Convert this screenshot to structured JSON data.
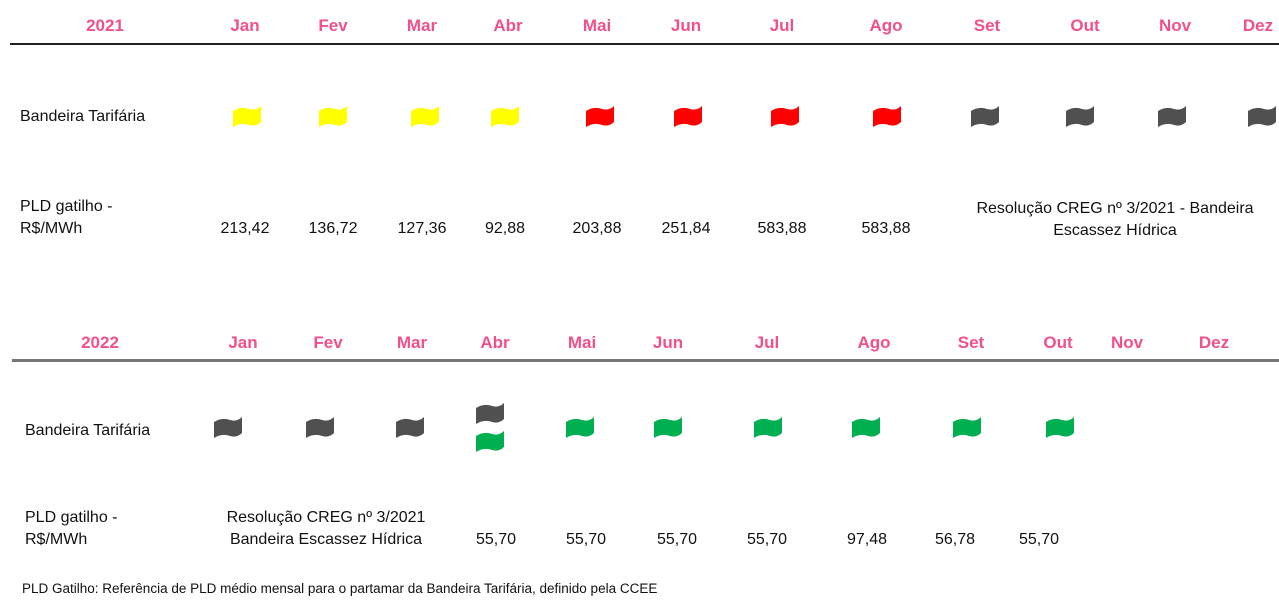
{
  "tables": [
    {
      "year": "2021",
      "months": [
        "Jan",
        "Fev",
        "Mar",
        "Abr",
        "Mai",
        "Jun",
        "Jul",
        "Ago",
        "Set",
        "Out",
        "Nov",
        "Dez"
      ],
      "flag_label": "Bandeira Tarifária",
      "flags": [
        [
          "#ffff00"
        ],
        [
          "#ffff00"
        ],
        [
          "#ffff00"
        ],
        [
          "#ffff00"
        ],
        [
          "#ff0000"
        ],
        [
          "#ff0000"
        ],
        [
          "#ff0000"
        ],
        [
          "#ff0000"
        ],
        [
          "#505050"
        ],
        [
          "#505050"
        ],
        [
          "#505050"
        ],
        [
          "#505050"
        ]
      ],
      "pld_label": "PLD gatilho - R$/MWh",
      "pld": [
        "213,42",
        "136,72",
        "127,36",
        "92,88",
        "203,88",
        "251,84",
        "583,88",
        "583,88",
        null,
        null,
        null,
        null
      ],
      "note": "Resolução CREG nº 3/2021 - Bandeira Escassez Hídrica"
    },
    {
      "year": "2022",
      "months": [
        "Jan",
        "Fev",
        "Mar",
        "Abr",
        "Mai",
        "Jun",
        "Jul",
        "Ago",
        "Set",
        "Out",
        "Nov",
        "Dez"
      ],
      "flag_label": "Bandeira Tarifária",
      "flags": [
        [
          "#505050"
        ],
        [
          "#505050"
        ],
        [
          "#505050"
        ],
        [
          "#505050",
          "#00b050"
        ],
        [
          "#00b050"
        ],
        [
          "#00b050"
        ],
        [
          "#00b050"
        ],
        [
          "#00b050"
        ],
        [
          "#00b050"
        ],
        [
          "#00b050"
        ],
        [],
        []
      ],
      "pld_label": "PLD gatilho - R$/MWh",
      "pld": [
        null,
        null,
        null,
        "55,70",
        "55,70",
        "55,70",
        "55,70",
        "97,48",
        "56,78",
        "55,70",
        null,
        null
      ],
      "note": "Resolução CREG nº 3/2021 Bandeira Escassez Hídrica"
    }
  ],
  "footer": "PLD Gatilho: Referência de PLD médio mensal para o partamar da Bandeira Tarifária, definido pela CCEE"
}
